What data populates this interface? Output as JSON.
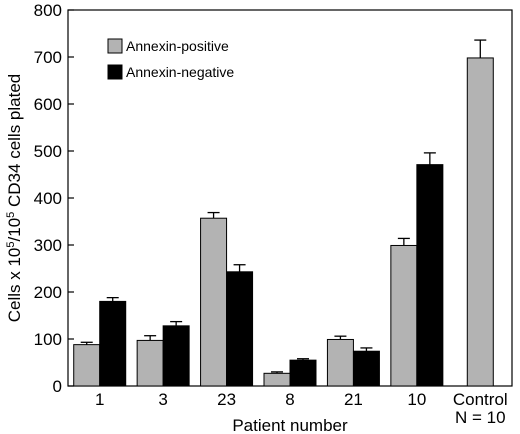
{
  "chart_data": {
    "type": "bar",
    "title": "",
    "xlabel": "Patient number",
    "ylabel": {
      "part1": "Cells x 10",
      "sup1": "5",
      "part2": "/10",
      "sup2": "5",
      "part3": " CD34 cells plated"
    },
    "ylim": [
      0,
      800
    ],
    "yticks": [
      0,
      100,
      200,
      300,
      400,
      500,
      600,
      700,
      800
    ],
    "grid": false,
    "legend_position": "top-left",
    "groups": [
      {
        "label": [
          "1"
        ],
        "bars": [
          {
            "series": "Annexin-positive",
            "value": 88,
            "error": 5
          },
          {
            "series": "Annexin-negative",
            "value": 180,
            "error": 8
          }
        ]
      },
      {
        "label": [
          "3"
        ],
        "bars": [
          {
            "series": "Annexin-positive",
            "value": 97,
            "error": 10
          },
          {
            "series": "Annexin-negative",
            "value": 128,
            "error": 9
          }
        ]
      },
      {
        "label": [
          "23"
        ],
        "bars": [
          {
            "series": "Annexin-positive",
            "value": 357,
            "error": 12
          },
          {
            "series": "Annexin-negative",
            "value": 243,
            "error": 15
          }
        ]
      },
      {
        "label": [
          "8"
        ],
        "bars": [
          {
            "series": "Annexin-positive",
            "value": 27,
            "error": 3
          },
          {
            "series": "Annexin-negative",
            "value": 55,
            "error": 3
          }
        ]
      },
      {
        "label": [
          "21"
        ],
        "bars": [
          {
            "series": "Annexin-positive",
            "value": 99,
            "error": 7
          },
          {
            "series": "Annexin-negative",
            "value": 74,
            "error": 7
          }
        ]
      },
      {
        "label": [
          "10"
        ],
        "bars": [
          {
            "series": "Annexin-positive",
            "value": 299,
            "error": 15
          },
          {
            "series": "Annexin-negative",
            "value": 471,
            "error": 25
          }
        ]
      },
      {
        "label": [
          "Control",
          "N = 10"
        ],
        "bars": [
          {
            "series": "Annexin-positive",
            "value": 698,
            "error": 38
          }
        ]
      }
    ],
    "series": [
      {
        "name": "Annexin-positive",
        "color": "#b3b3b3"
      },
      {
        "name": "Annexin-negative",
        "color": "#000000"
      }
    ]
  }
}
